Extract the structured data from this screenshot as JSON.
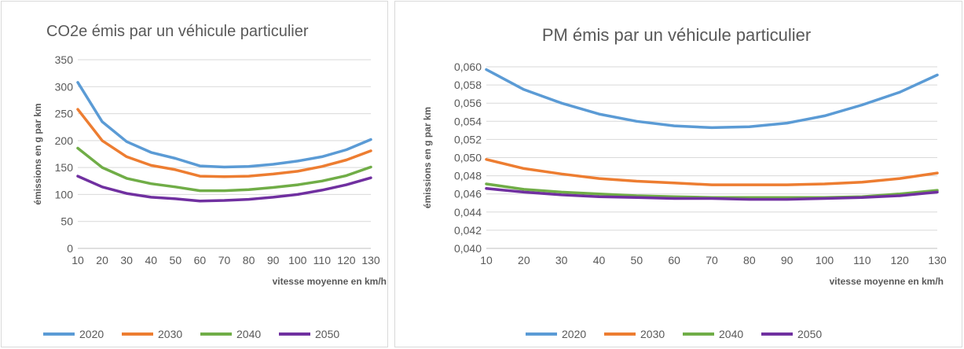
{
  "chart_data": [
    {
      "type": "line",
      "title": "CO2e émis par un véhicule particulier",
      "xlabel": "vitesse moyenne en km/h",
      "ylabel": "émissions en g par km",
      "x": [
        10,
        20,
        30,
        40,
        50,
        60,
        70,
        80,
        90,
        100,
        110,
        120,
        130
      ],
      "ylim": [
        0,
        350
      ],
      "yticks": [
        "0",
        "50",
        "100",
        "150",
        "200",
        "250",
        "300",
        "350"
      ],
      "xticks": [
        "10",
        "20",
        "30",
        "40",
        "50",
        "60",
        "70",
        "80",
        "90",
        "100",
        "110",
        "120",
        "130"
      ],
      "grid": true,
      "legend": "bottom",
      "series": [
        {
          "name": "2020",
          "color": "#5b9bd5",
          "values": [
            308,
            235,
            198,
            178,
            167,
            153,
            151,
            152,
            156,
            162,
            170,
            183,
            202
          ]
        },
        {
          "name": "2030",
          "color": "#ed7d31",
          "values": [
            258,
            200,
            170,
            154,
            146,
            134,
            133,
            134,
            138,
            143,
            152,
            164,
            181
          ]
        },
        {
          "name": "2040",
          "color": "#70ad47",
          "values": [
            186,
            150,
            130,
            120,
            114,
            107,
            107,
            109,
            113,
            118,
            125,
            135,
            151
          ]
        },
        {
          "name": "2050",
          "color": "#7030a0",
          "values": [
            134,
            114,
            102,
            95,
            92,
            88,
            89,
            91,
            95,
            100,
            108,
            118,
            131
          ]
        }
      ]
    },
    {
      "type": "line",
      "title": "PM émis par un véhicule particulier",
      "xlabel": "vitesse moyenne en km/h",
      "ylabel": "émissions en g par km",
      "x": [
        10,
        20,
        30,
        40,
        50,
        60,
        70,
        80,
        90,
        100,
        110,
        120,
        130
      ],
      "ylim": [
        0.04,
        0.06
      ],
      "yticks": [
        "0,040",
        "0,042",
        "0,044",
        "0,046",
        "0,048",
        "0,050",
        "0,052",
        "0,054",
        "0,056",
        "0,058",
        "0,060"
      ],
      "xticks": [
        "10",
        "20",
        "30",
        "40",
        "50",
        "60",
        "70",
        "80",
        "90",
        "100",
        "110",
        "120",
        "130"
      ],
      "grid": true,
      "legend": "bottom",
      "series": [
        {
          "name": "2020",
          "color": "#5b9bd5",
          "values": [
            0.0597,
            0.0575,
            0.056,
            0.0548,
            0.054,
            0.0535,
            0.0533,
            0.0534,
            0.0538,
            0.0546,
            0.0558,
            0.0572,
            0.0591
          ]
        },
        {
          "name": "2030",
          "color": "#ed7d31",
          "values": [
            0.0498,
            0.0488,
            0.0482,
            0.0477,
            0.0474,
            0.0472,
            0.047,
            0.047,
            0.047,
            0.0471,
            0.0473,
            0.0477,
            0.0483
          ]
        },
        {
          "name": "2040",
          "color": "#70ad47",
          "values": [
            0.0471,
            0.0465,
            0.0462,
            0.046,
            0.0458,
            0.0457,
            0.0456,
            0.0456,
            0.0456,
            0.0456,
            0.0457,
            0.046,
            0.0464
          ]
        },
        {
          "name": "2050",
          "color": "#7030a0",
          "values": [
            0.0466,
            0.0462,
            0.0459,
            0.0457,
            0.0456,
            0.0455,
            0.0455,
            0.0454,
            0.0454,
            0.0455,
            0.0456,
            0.0458,
            0.0462
          ]
        }
      ]
    }
  ]
}
